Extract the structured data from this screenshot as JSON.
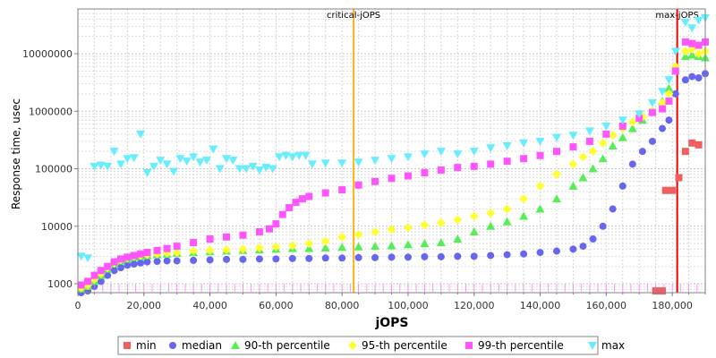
{
  "chart_data": {
    "type": "scatter",
    "title": "",
    "xlabel": "jOPS",
    "ylabel": "Response time, usec",
    "x_axis": {
      "min": 0,
      "max": 190000,
      "ticks": [
        0,
        20000,
        40000,
        60000,
        80000,
        100000,
        120000,
        140000,
        160000,
        180000
      ],
      "tick_labels": [
        "0",
        "20,000",
        "40,000",
        "60,000",
        "80,000",
        "100,000",
        "120,000",
        "140,000",
        "160,000",
        "180,000"
      ]
    },
    "y_axis": {
      "scale": "log",
      "min": 700,
      "max": 60000000,
      "ticks": [
        1000,
        10000,
        100000,
        1000000,
        10000000
      ],
      "tick_labels": [
        "1000",
        "10000",
        "100000",
        "1000000",
        "10000000"
      ]
    },
    "grid": true,
    "legend_position": "bottom",
    "markers": [
      {
        "label": "critical-jOPS",
        "x": 83500,
        "color": "#ffb31a"
      },
      {
        "label": "max-jOPS",
        "x": 181500,
        "color": "#ee0000"
      }
    ],
    "series": [
      {
        "name": "min",
        "color": "#ef5f5f",
        "shape": "square",
        "x": [
          175000,
          177000,
          178000,
          180000,
          182000,
          184000,
          186000,
          188000
        ],
        "y": [
          750,
          750,
          42000,
          42000,
          70000,
          200000,
          280000,
          260000
        ]
      },
      {
        "name": "median",
        "color": "#6666ee",
        "shape": "circle",
        "x": [
          1000,
          3000,
          5000,
          7000,
          9000,
          11000,
          13000,
          15000,
          17000,
          19000,
          21000,
          24000,
          27000,
          30000,
          35000,
          40000,
          45000,
          50000,
          55000,
          60000,
          65000,
          70000,
          75000,
          80000,
          85000,
          90000,
          95000,
          100000,
          105000,
          110000,
          115000,
          120000,
          125000,
          130000,
          135000,
          140000,
          145000,
          150000,
          153000,
          156000,
          159000,
          162000,
          165000,
          168000,
          171000,
          174000,
          177000,
          179000,
          181000,
          184000,
          186000,
          188000,
          190000
        ],
        "y": [
          700,
          750,
          900,
          1100,
          1400,
          1700,
          1900,
          2100,
          2200,
          2300,
          2400,
          2450,
          2500,
          2500,
          2550,
          2600,
          2650,
          2650,
          2700,
          2700,
          2750,
          2750,
          2800,
          2800,
          2850,
          2850,
          2900,
          2900,
          2950,
          2950,
          3000,
          3000,
          3100,
          3200,
          3300,
          3500,
          3700,
          4000,
          4500,
          6000,
          10000,
          20000,
          50000,
          120000,
          200000,
          300000,
          500000,
          700000,
          2000000,
          3500000,
          4000000,
          3800000,
          4500000
        ]
      },
      {
        "name": "90-th percentile",
        "color": "#55ee55",
        "shape": "triangle",
        "x": [
          1000,
          3000,
          5000,
          7000,
          9000,
          11000,
          13000,
          15000,
          17000,
          19000,
          21000,
          24000,
          27000,
          30000,
          35000,
          40000,
          45000,
          50000,
          55000,
          60000,
          65000,
          70000,
          75000,
          80000,
          85000,
          90000,
          95000,
          100000,
          105000,
          110000,
          115000,
          120000,
          125000,
          130000,
          135000,
          140000,
          145000,
          150000,
          153000,
          156000,
          159000,
          162000,
          165000,
          168000,
          171000,
          174000,
          177000,
          179000,
          181000,
          184000,
          186000,
          188000,
          190000
        ],
        "y": [
          800,
          900,
          1100,
          1400,
          1800,
          2200,
          2500,
          2700,
          2900,
          3000,
          3100,
          3200,
          3300,
          3400,
          3500,
          3600,
          3700,
          3800,
          3900,
          4000,
          4100,
          4100,
          4200,
          4300,
          4400,
          4500,
          4600,
          4800,
          5000,
          5200,
          6000,
          8000,
          10000,
          12000,
          15000,
          20000,
          30000,
          50000,
          70000,
          100000,
          150000,
          250000,
          350000,
          500000,
          700000,
          1000000,
          1500000,
          2500000,
          5000000,
          9000000,
          9500000,
          9000000,
          8500000
        ]
      },
      {
        "name": "95-th percentile",
        "color": "#ffff33",
        "shape": "diamond",
        "x": [
          1000,
          3000,
          5000,
          7000,
          9000,
          11000,
          13000,
          15000,
          17000,
          19000,
          21000,
          24000,
          27000,
          30000,
          35000,
          40000,
          45000,
          50000,
          55000,
          60000,
          65000,
          70000,
          75000,
          80000,
          85000,
          90000,
          95000,
          100000,
          105000,
          110000,
          115000,
          120000,
          125000,
          130000,
          135000,
          140000,
          145000,
          150000,
          153000,
          156000,
          159000,
          162000,
          165000,
          168000,
          171000,
          174000,
          177000,
          179000,
          181000,
          184000,
          186000,
          188000,
          190000
        ],
        "y": [
          850,
          950,
          1200,
          1500,
          1900,
          2300,
          2600,
          2800,
          3000,
          3100,
          3200,
          3300,
          3400,
          3500,
          3700,
          3800,
          3900,
          4000,
          4200,
          4400,
          4600,
          5000,
          5500,
          6500,
          7200,
          8000,
          8800,
          9500,
          10500,
          11500,
          13000,
          15000,
          17000,
          20000,
          30000,
          50000,
          80000,
          120000,
          160000,
          200000,
          280000,
          380000,
          500000,
          650000,
          800000,
          1000000,
          1400000,
          2000000,
          6000000,
          11000000,
          12000000,
          10000000,
          11000000
        ]
      },
      {
        "name": "99-th percentile",
        "color": "#ff55ff",
        "shape": "square",
        "x": [
          1000,
          3000,
          5000,
          7000,
          9000,
          11000,
          13000,
          15000,
          17000,
          19000,
          21000,
          24000,
          27000,
          30000,
          35000,
          40000,
          45000,
          50000,
          55000,
          58000,
          60000,
          62000,
          64000,
          66000,
          68000,
          70000,
          75000,
          80000,
          85000,
          90000,
          95000,
          100000,
          105000,
          110000,
          115000,
          120000,
          125000,
          130000,
          135000,
          140000,
          145000,
          150000,
          155000,
          160000,
          165000,
          170000,
          174000,
          177000,
          179000,
          181000,
          184000,
          186000,
          188000,
          190000
        ],
        "y": [
          950,
          1100,
          1400,
          1700,
          2000,
          2400,
          2700,
          2900,
          3100,
          3300,
          3500,
          3800,
          4100,
          4500,
          5200,
          6000,
          6500,
          7000,
          8000,
          9000,
          11000,
          16000,
          21000,
          26000,
          30000,
          33000,
          38000,
          43000,
          52000,
          60000,
          68000,
          75000,
          85000,
          95000,
          105000,
          110000,
          120000,
          135000,
          150000,
          170000,
          200000,
          240000,
          300000,
          400000,
          550000,
          750000,
          950000,
          1100000,
          1500000,
          5000000,
          16000000,
          15000000,
          14000000,
          16000000
        ]
      },
      {
        "name": "max",
        "color": "#66eeff",
        "shape": "triangle-down",
        "x": [
          1000,
          3000,
          5000,
          7000,
          9000,
          11000,
          13000,
          15000,
          17000,
          19000,
          21000,
          23000,
          25000,
          27000,
          29000,
          31000,
          33000,
          35000,
          37000,
          39000,
          41000,
          43000,
          45000,
          47000,
          49000,
          51000,
          53000,
          55000,
          57000,
          59000,
          61000,
          63000,
          65000,
          67000,
          69000,
          71000,
          75000,
          80000,
          85000,
          90000,
          95000,
          100000,
          105000,
          110000,
          115000,
          120000,
          125000,
          130000,
          135000,
          140000,
          145000,
          150000,
          155000,
          160000,
          165000,
          170000,
          174000,
          177000,
          179000,
          181000,
          184000,
          186000,
          188000,
          190000
        ],
        "y": [
          3000,
          2800,
          110000,
          115000,
          110000,
          200000,
          120000,
          150000,
          155000,
          400000,
          85000,
          110000,
          140000,
          120000,
          90000,
          150000,
          135000,
          160000,
          130000,
          140000,
          220000,
          100000,
          150000,
          140000,
          100000,
          100000,
          110000,
          95000,
          105000,
          100000,
          160000,
          170000,
          160000,
          170000,
          170000,
          120000,
          125000,
          125000,
          130000,
          140000,
          150000,
          160000,
          180000,
          200000,
          180000,
          200000,
          230000,
          250000,
          280000,
          300000,
          350000,
          380000,
          450000,
          550000,
          700000,
          900000,
          1400000,
          2200000,
          3500000,
          11000000,
          35000000,
          28000000,
          38000000,
          42000000
        ]
      }
    ]
  }
}
